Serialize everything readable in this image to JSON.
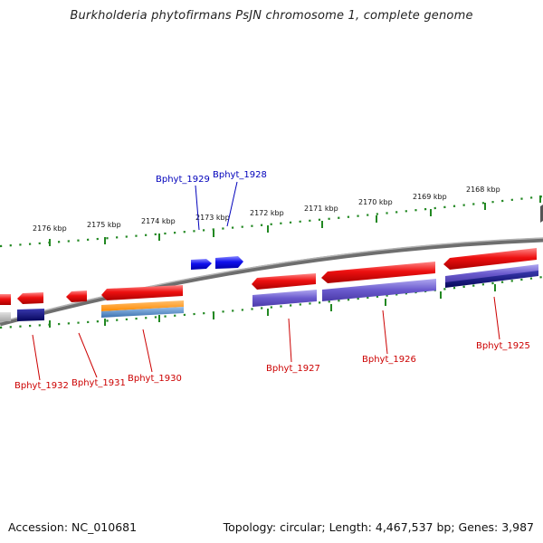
{
  "title": "Burkholderia phytofirmans PsJN chromosome 1, complete genome",
  "footer": {
    "accession_label": "Accession: NC_010681",
    "summary": "Topology: circular; Length: 4,467,537 bp; Genes: 3,987"
  },
  "colors": {
    "backbone": "#808080",
    "ticks": "#228822",
    "minus_strand_gene": "#dd1111",
    "plus_strand_gene": "#1111ee",
    "cds_feature": "#6a5acd",
    "cds_feature_dark": "#101080",
    "rna_feature": "#ff9a1a",
    "rna_feature_blue": "#4a86c8",
    "minus_label": "#cc0000",
    "plus_label": "#0000bb"
  },
  "scale_ticks": [
    "2176 kbp",
    "2175 kbp",
    "2174 kbp",
    "2173 kbp",
    "2172 kbp",
    "2171 kbp",
    "2170 kbp",
    "2169 kbp",
    "2168 kbp"
  ],
  "gene_labels": {
    "bphyt_1925": "Bphyt_1925",
    "bphyt_1926": "Bphyt_1926",
    "bphyt_1927": "Bphyt_1927",
    "bphyt_1928": "Bphyt_1928",
    "bphyt_1929": "Bphyt_1929",
    "bphyt_1930": "Bphyt_1930",
    "bphyt_1931": "Bphyt_1931",
    "bphyt_1932": "Bphyt_1932"
  }
}
